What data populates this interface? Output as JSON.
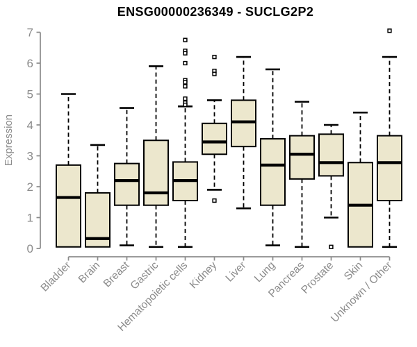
{
  "chart_data": {
    "type": "boxplot",
    "title": "ENSG00000236349 - SUCLG2P2",
    "ylabel": "Expression",
    "xlabel": "",
    "ylim": [
      0,
      7
    ],
    "yticks": [
      0,
      1,
      2,
      3,
      4,
      5,
      6,
      7
    ],
    "grid": false,
    "x_label_rotation": -45,
    "categories": [
      "Bladder",
      "Brain",
      "Breast",
      "Gastric",
      "Hematopoietic cells",
      "Kidney",
      "Liver",
      "Lung",
      "Pancreas",
      "Prostate",
      "Skin",
      "Unknown / Other"
    ],
    "series": [
      {
        "category": "Bladder",
        "whisker_low": 0.05,
        "q1": 0.05,
        "median": 1.65,
        "q3": 2.7,
        "whisker_high": 5.0,
        "outliers": []
      },
      {
        "category": "Brain",
        "whisker_low": 0.05,
        "q1": 0.05,
        "median": 0.32,
        "q3": 1.8,
        "whisker_high": 3.35,
        "outliers": []
      },
      {
        "category": "Breast",
        "whisker_low": 0.1,
        "q1": 1.4,
        "median": 2.2,
        "q3": 2.75,
        "whisker_high": 4.55,
        "outliers": []
      },
      {
        "category": "Gastric",
        "whisker_low": 0.05,
        "q1": 1.4,
        "median": 1.8,
        "q3": 3.5,
        "whisker_high": 5.9,
        "outliers": []
      },
      {
        "category": "Hematopoietic cells",
        "whisker_low": 0.05,
        "q1": 1.55,
        "median": 2.2,
        "q3": 2.8,
        "whisker_high": 4.6,
        "outliers": [
          6.75,
          6.4,
          6.32,
          6.0,
          5.45,
          5.38,
          5.25,
          4.85,
          4.72,
          4.65
        ]
      },
      {
        "category": "Kidney",
        "whisker_low": 1.9,
        "q1": 3.05,
        "median": 3.45,
        "q3": 4.05,
        "whisker_high": 4.8,
        "outliers": [
          6.2,
          5.75,
          5.65,
          1.55
        ]
      },
      {
        "category": "Liver",
        "whisker_low": 1.3,
        "q1": 3.3,
        "median": 4.1,
        "q3": 4.8,
        "whisker_high": 6.2,
        "outliers": []
      },
      {
        "category": "Lung",
        "whisker_low": 0.1,
        "q1": 1.4,
        "median": 2.7,
        "q3": 3.55,
        "whisker_high": 5.8,
        "outliers": []
      },
      {
        "category": "Pancreas",
        "whisker_low": 0.05,
        "q1": 2.25,
        "median": 3.05,
        "q3": 3.65,
        "whisker_high": 4.75,
        "outliers": []
      },
      {
        "category": "Prostate",
        "whisker_low": 1.0,
        "q1": 2.35,
        "median": 2.78,
        "q3": 3.7,
        "whisker_high": 4.0,
        "outliers": [
          0.05
        ]
      },
      {
        "category": "Skin",
        "whisker_low": 0.05,
        "q1": 0.05,
        "median": 1.4,
        "q3": 2.78,
        "whisker_high": 4.4,
        "outliers": []
      },
      {
        "category": "Unknown / Other",
        "whisker_low": 0.05,
        "q1": 1.55,
        "median": 2.78,
        "q3": 3.65,
        "whisker_high": 6.2,
        "outliers": [
          7.05
        ]
      }
    ],
    "colors": {
      "box_fill": "#ECE7CD",
      "box_border": "#000000",
      "median": "#000000",
      "whisker": "#000000",
      "outlier": "#000000",
      "axis": "#8b8b8b",
      "tick_label": "#8b8b8b",
      "title": "#000000",
      "background": "#ffffff"
    }
  }
}
